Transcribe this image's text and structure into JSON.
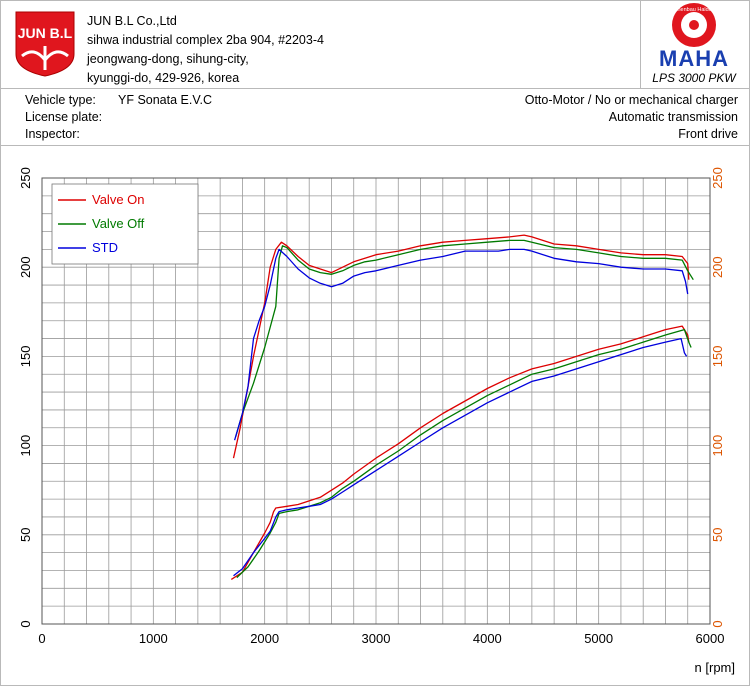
{
  "header": {
    "logo_text": "JUN B.L",
    "company_lines": [
      "JUN B.L Co.,Ltd",
      "sihwa industrial complex 2ba 904, #2203-4",
      "jeongwang-dong, sihung-city,",
      "kyunggi-do, 429-926, korea"
    ],
    "maha_logo_text": "MAHA",
    "maha_ring_text": "Maschinenbau Haldenwang",
    "dyno_model": "LPS 3000 PKW"
  },
  "vehicle": {
    "type_label": "Vehicle type:",
    "type_value": "YF Sonata E.V.C",
    "plate_label": "License plate:",
    "plate_value": "",
    "inspector_label": "Inspector:",
    "inspector_value": "",
    "engine": "Otto-Motor / No or mechanical charger",
    "transmission": "Automatic transmission",
    "drive": "Front drive"
  },
  "colors": {
    "red": "#dd0000",
    "green": "#007a00",
    "blue": "#0000dd",
    "right_axis": "#dd5500",
    "grid": "#9a9a9a"
  },
  "chart_data": {
    "type": "line",
    "title": "",
    "xlabel": "n [rpm]",
    "ylabel": "",
    "xlim": [
      0,
      6000
    ],
    "ylim": [
      0,
      250
    ],
    "y2lim": [
      0,
      250
    ],
    "grid": true,
    "legend_placement": "top-left",
    "x_ticks": [
      0,
      1000,
      2000,
      3000,
      4000,
      5000,
      6000
    ],
    "y_ticks": [
      0,
      50,
      100,
      150,
      200,
      250
    ],
    "y2_ticks": [
      0,
      50,
      100,
      150,
      200,
      250
    ],
    "series": [
      {
        "name": "Valve On",
        "color": "#dd0000",
        "upper": [
          [
            1720,
            93
          ],
          [
            1780,
            110
          ],
          [
            1850,
            133
          ],
          [
            1900,
            150
          ],
          [
            1950,
            165
          ],
          [
            2000,
            180
          ],
          [
            2050,
            200
          ],
          [
            2100,
            210
          ],
          [
            2150,
            214
          ],
          [
            2200,
            212
          ],
          [
            2300,
            206
          ],
          [
            2400,
            201
          ],
          [
            2500,
            199
          ],
          [
            2600,
            197
          ],
          [
            2700,
            200
          ],
          [
            2800,
            203
          ],
          [
            2900,
            205
          ],
          [
            3000,
            207
          ],
          [
            3200,
            209
          ],
          [
            3400,
            212
          ],
          [
            3600,
            214
          ],
          [
            3800,
            215
          ],
          [
            4000,
            216
          ],
          [
            4200,
            217
          ],
          [
            4330,
            218
          ],
          [
            4400,
            217
          ],
          [
            4600,
            213
          ],
          [
            4800,
            212
          ],
          [
            5000,
            210
          ],
          [
            5200,
            208
          ],
          [
            5400,
            207
          ],
          [
            5600,
            207
          ],
          [
            5750,
            206
          ],
          [
            5800,
            202
          ],
          [
            5810,
            193
          ]
        ],
        "lower": [
          [
            1700,
            25
          ],
          [
            1800,
            29
          ],
          [
            1900,
            40
          ],
          [
            2000,
            51
          ],
          [
            2050,
            57
          ],
          [
            2080,
            63
          ],
          [
            2100,
            65
          ],
          [
            2200,
            66
          ],
          [
            2300,
            67
          ],
          [
            2400,
            69
          ],
          [
            2500,
            71
          ],
          [
            2600,
            75
          ],
          [
            2700,
            79
          ],
          [
            2800,
            84
          ],
          [
            3000,
            93
          ],
          [
            3200,
            101
          ],
          [
            3400,
            110
          ],
          [
            3600,
            118
          ],
          [
            3800,
            125
          ],
          [
            4000,
            132
          ],
          [
            4200,
            138
          ],
          [
            4400,
            143
          ],
          [
            4600,
            146
          ],
          [
            4800,
            150
          ],
          [
            5000,
            154
          ],
          [
            5200,
            157
          ],
          [
            5400,
            161
          ],
          [
            5600,
            165
          ],
          [
            5750,
            167
          ],
          [
            5800,
            162
          ],
          [
            5810,
            158
          ]
        ]
      },
      {
        "name": "Valve Off",
        "color": "#007a00",
        "upper": [
          [
            1740,
            105
          ],
          [
            1800,
            118
          ],
          [
            1900,
            135
          ],
          [
            2000,
            155
          ],
          [
            2100,
            178
          ],
          [
            2130,
            205
          ],
          [
            2160,
            212
          ],
          [
            2200,
            211
          ],
          [
            2300,
            204
          ],
          [
            2400,
            199
          ],
          [
            2500,
            197
          ],
          [
            2600,
            196
          ],
          [
            2700,
            198
          ],
          [
            2800,
            201
          ],
          [
            2900,
            203
          ],
          [
            3000,
            204
          ],
          [
            3200,
            207
          ],
          [
            3400,
            210
          ],
          [
            3600,
            212
          ],
          [
            3800,
            213
          ],
          [
            4000,
            214
          ],
          [
            4200,
            215
          ],
          [
            4330,
            215
          ],
          [
            4400,
            214
          ],
          [
            4600,
            211
          ],
          [
            4800,
            210
          ],
          [
            5000,
            208
          ],
          [
            5200,
            206
          ],
          [
            5400,
            205
          ],
          [
            5600,
            205
          ],
          [
            5750,
            204
          ],
          [
            5800,
            198
          ],
          [
            5850,
            193
          ]
        ],
        "lower": [
          [
            1750,
            26
          ],
          [
            1850,
            32
          ],
          [
            1950,
            41
          ],
          [
            2050,
            51
          ],
          [
            2100,
            57
          ],
          [
            2130,
            62
          ],
          [
            2200,
            63
          ],
          [
            2300,
            64
          ],
          [
            2400,
            66
          ],
          [
            2500,
            68
          ],
          [
            2600,
            71
          ],
          [
            2700,
            76
          ],
          [
            2800,
            80
          ],
          [
            3000,
            89
          ],
          [
            3200,
            97
          ],
          [
            3400,
            106
          ],
          [
            3600,
            114
          ],
          [
            3800,
            121
          ],
          [
            4000,
            128
          ],
          [
            4200,
            134
          ],
          [
            4400,
            140
          ],
          [
            4600,
            143
          ],
          [
            4800,
            147
          ],
          [
            5000,
            151
          ],
          [
            5200,
            154
          ],
          [
            5400,
            158
          ],
          [
            5600,
            162
          ],
          [
            5770,
            165
          ],
          [
            5810,
            158
          ],
          [
            5830,
            155
          ]
        ]
      },
      {
        "name": "STD",
        "color": "#0000dd",
        "upper": [
          [
            1730,
            103
          ],
          [
            1800,
            118
          ],
          [
            1850,
            133
          ],
          [
            1900,
            160
          ],
          [
            1950,
            170
          ],
          [
            2000,
            178
          ],
          [
            2050,
            190
          ],
          [
            2100,
            205
          ],
          [
            2130,
            210
          ],
          [
            2200,
            206
          ],
          [
            2300,
            199
          ],
          [
            2400,
            194
          ],
          [
            2500,
            191
          ],
          [
            2600,
            189
          ],
          [
            2700,
            191
          ],
          [
            2800,
            195
          ],
          [
            2900,
            197
          ],
          [
            3000,
            198
          ],
          [
            3200,
            201
          ],
          [
            3400,
            204
          ],
          [
            3600,
            206
          ],
          [
            3800,
            209
          ],
          [
            4000,
            209
          ],
          [
            4100,
            209
          ],
          [
            4200,
            210
          ],
          [
            4330,
            210
          ],
          [
            4400,
            209
          ],
          [
            4600,
            205
          ],
          [
            4800,
            203
          ],
          [
            5000,
            202
          ],
          [
            5200,
            200
          ],
          [
            5400,
            199
          ],
          [
            5600,
            199
          ],
          [
            5750,
            198
          ],
          [
            5780,
            192
          ],
          [
            5800,
            185
          ]
        ],
        "lower": [
          [
            1720,
            27
          ],
          [
            1800,
            31
          ],
          [
            1900,
            40
          ],
          [
            2000,
            48
          ],
          [
            2050,
            52
          ],
          [
            2100,
            60
          ],
          [
            2130,
            63
          ],
          [
            2200,
            64
          ],
          [
            2300,
            65
          ],
          [
            2400,
            66
          ],
          [
            2500,
            67
          ],
          [
            2600,
            70
          ],
          [
            2700,
            74
          ],
          [
            2800,
            78
          ],
          [
            3000,
            86
          ],
          [
            3200,
            94
          ],
          [
            3400,
            102
          ],
          [
            3600,
            110
          ],
          [
            3800,
            117
          ],
          [
            4000,
            124
          ],
          [
            4200,
            130
          ],
          [
            4400,
            136
          ],
          [
            4600,
            139
          ],
          [
            4800,
            143
          ],
          [
            5000,
            147
          ],
          [
            5200,
            151
          ],
          [
            5400,
            155
          ],
          [
            5600,
            158
          ],
          [
            5740,
            160
          ],
          [
            5770,
            152
          ],
          [
            5790,
            150
          ]
        ]
      }
    ]
  }
}
